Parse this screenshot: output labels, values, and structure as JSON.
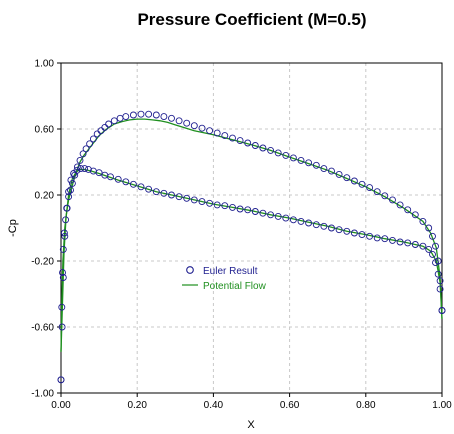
{
  "chart_data": {
    "type": "line",
    "title": "Pressure Coefficient (M=0.5)",
    "xlabel": "X",
    "ylabel": "-Cp",
    "xlim": [
      0,
      1
    ],
    "ylim": [
      -1,
      1
    ],
    "x_ticks": [
      0,
      0.2,
      0.4,
      0.6,
      0.8,
      1.0
    ],
    "x_tick_labels": [
      "0.00",
      "0.20",
      "0.40",
      "0.60",
      "0.80",
      "1.00"
    ],
    "y_ticks": [
      -1,
      -0.6,
      -0.2,
      0.2,
      0.6,
      1.0
    ],
    "y_tick_labels": [
      "-1.00",
      "-0.60",
      "-0.20",
      "0.20",
      "0.60",
      "1.00"
    ],
    "grid": true,
    "legend_position": "center-left",
    "series": [
      {
        "name": "Euler Result",
        "style": "markers",
        "color": "#1f1f8f",
        "upper": [
          [
            0.0,
            -0.92
          ],
          [
            0.002,
            -0.48
          ],
          [
            0.004,
            -0.27
          ],
          [
            0.006,
            -0.13
          ],
          [
            0.009,
            -0.03
          ],
          [
            0.012,
            0.05
          ],
          [
            0.016,
            0.12
          ],
          [
            0.02,
            0.19
          ],
          [
            0.025,
            0.23
          ],
          [
            0.03,
            0.27
          ],
          [
            0.036,
            0.32
          ],
          [
            0.043,
            0.37
          ],
          [
            0.05,
            0.41
          ],
          [
            0.058,
            0.45
          ],
          [
            0.066,
            0.48
          ],
          [
            0.075,
            0.51
          ],
          [
            0.085,
            0.54
          ],
          [
            0.095,
            0.57
          ],
          [
            0.105,
            0.59
          ],
          [
            0.115,
            0.61
          ],
          [
            0.125,
            0.63
          ],
          [
            0.14,
            0.65
          ],
          [
            0.155,
            0.665
          ],
          [
            0.17,
            0.675
          ],
          [
            0.19,
            0.685
          ],
          [
            0.21,
            0.69
          ],
          [
            0.23,
            0.69
          ],
          [
            0.25,
            0.685
          ],
          [
            0.27,
            0.675
          ],
          [
            0.29,
            0.665
          ],
          [
            0.31,
            0.65
          ],
          [
            0.33,
            0.635
          ],
          [
            0.35,
            0.62
          ],
          [
            0.37,
            0.605
          ],
          [
            0.39,
            0.59
          ],
          [
            0.41,
            0.575
          ],
          [
            0.43,
            0.56
          ],
          [
            0.45,
            0.545
          ],
          [
            0.47,
            0.53
          ],
          [
            0.49,
            0.515
          ],
          [
            0.51,
            0.5
          ],
          [
            0.53,
            0.485
          ],
          [
            0.55,
            0.47
          ],
          [
            0.57,
            0.455
          ],
          [
            0.59,
            0.44
          ],
          [
            0.61,
            0.425
          ],
          [
            0.63,
            0.41
          ],
          [
            0.65,
            0.395
          ],
          [
            0.67,
            0.38
          ],
          [
            0.69,
            0.36
          ],
          [
            0.71,
            0.345
          ],
          [
            0.73,
            0.325
          ],
          [
            0.75,
            0.305
          ],
          [
            0.77,
            0.285
          ],
          [
            0.79,
            0.265
          ],
          [
            0.81,
            0.245
          ],
          [
            0.83,
            0.22
          ],
          [
            0.85,
            0.195
          ],
          [
            0.87,
            0.17
          ],
          [
            0.89,
            0.14
          ],
          [
            0.91,
            0.11
          ],
          [
            0.93,
            0.08
          ],
          [
            0.95,
            0.04
          ],
          [
            0.965,
            0.0
          ],
          [
            0.975,
            -0.05
          ],
          [
            0.983,
            -0.11
          ],
          [
            0.99,
            -0.2
          ],
          [
            0.995,
            -0.32
          ],
          [
            1.0,
            -0.5
          ]
        ],
        "lower": [
          [
            0.0,
            -0.92
          ],
          [
            0.003,
            -0.6
          ],
          [
            0.006,
            -0.3
          ],
          [
            0.01,
            -0.05
          ],
          [
            0.015,
            0.12
          ],
          [
            0.02,
            0.22
          ],
          [
            0.026,
            0.29
          ],
          [
            0.033,
            0.33
          ],
          [
            0.042,
            0.35
          ],
          [
            0.052,
            0.36
          ],
          [
            0.062,
            0.36
          ],
          [
            0.072,
            0.355
          ],
          [
            0.085,
            0.345
          ],
          [
            0.1,
            0.335
          ],
          [
            0.115,
            0.32
          ],
          [
            0.13,
            0.31
          ],
          [
            0.15,
            0.295
          ],
          [
            0.17,
            0.28
          ],
          [
            0.19,
            0.265
          ],
          [
            0.21,
            0.25
          ],
          [
            0.23,
            0.235
          ],
          [
            0.25,
            0.22
          ],
          [
            0.27,
            0.21
          ],
          [
            0.29,
            0.2
          ],
          [
            0.31,
            0.19
          ],
          [
            0.33,
            0.18
          ],
          [
            0.35,
            0.17
          ],
          [
            0.37,
            0.16
          ],
          [
            0.39,
            0.15
          ],
          [
            0.41,
            0.14
          ],
          [
            0.43,
            0.135
          ],
          [
            0.45,
            0.125
          ],
          [
            0.47,
            0.115
          ],
          [
            0.49,
            0.11
          ],
          [
            0.51,
            0.1
          ],
          [
            0.53,
            0.09
          ],
          [
            0.55,
            0.08
          ],
          [
            0.57,
            0.07
          ],
          [
            0.59,
            0.06
          ],
          [
            0.61,
            0.05
          ],
          [
            0.63,
            0.04
          ],
          [
            0.65,
            0.03
          ],
          [
            0.67,
            0.02
          ],
          [
            0.69,
            0.01
          ],
          [
            0.71,
            0.0
          ],
          [
            0.73,
            -0.01
          ],
          [
            0.75,
            -0.02
          ],
          [
            0.77,
            -0.03
          ],
          [
            0.79,
            -0.04
          ],
          [
            0.81,
            -0.05
          ],
          [
            0.83,
            -0.06
          ],
          [
            0.85,
            -0.065
          ],
          [
            0.87,
            -0.075
          ],
          [
            0.89,
            -0.085
          ],
          [
            0.91,
            -0.09
          ],
          [
            0.93,
            -0.1
          ],
          [
            0.95,
            -0.11
          ],
          [
            0.965,
            -0.13
          ],
          [
            0.975,
            -0.16
          ],
          [
            0.983,
            -0.21
          ],
          [
            0.99,
            -0.28
          ],
          [
            0.995,
            -0.37
          ],
          [
            1.0,
            -0.5
          ]
        ]
      },
      {
        "name": "Potential Flow",
        "style": "line",
        "color": "#1f8f1f",
        "upper": [
          [
            0.0,
            -0.75
          ],
          [
            0.002,
            -0.45
          ],
          [
            0.005,
            -0.2
          ],
          [
            0.01,
            0.0
          ],
          [
            0.015,
            0.1
          ],
          [
            0.02,
            0.17
          ],
          [
            0.03,
            0.26
          ],
          [
            0.04,
            0.34
          ],
          [
            0.05,
            0.4
          ],
          [
            0.06,
            0.44
          ],
          [
            0.08,
            0.5
          ],
          [
            0.1,
            0.56
          ],
          [
            0.12,
            0.6
          ],
          [
            0.14,
            0.63
          ],
          [
            0.16,
            0.645
          ],
          [
            0.18,
            0.655
          ],
          [
            0.2,
            0.66
          ],
          [
            0.22,
            0.66
          ],
          [
            0.24,
            0.655
          ],
          [
            0.26,
            0.65
          ],
          [
            0.28,
            0.64
          ],
          [
            0.3,
            0.625
          ],
          [
            0.35,
            0.59
          ],
          [
            0.4,
            0.565
          ],
          [
            0.45,
            0.535
          ],
          [
            0.5,
            0.505
          ],
          [
            0.55,
            0.47
          ],
          [
            0.6,
            0.43
          ],
          [
            0.65,
            0.39
          ],
          [
            0.7,
            0.35
          ],
          [
            0.75,
            0.3
          ],
          [
            0.8,
            0.25
          ],
          [
            0.85,
            0.19
          ],
          [
            0.9,
            0.12
          ],
          [
            0.95,
            0.04
          ],
          [
            0.97,
            -0.03
          ],
          [
            0.985,
            -0.12
          ],
          [
            0.995,
            -0.3
          ],
          [
            1.0,
            -0.55
          ]
        ],
        "lower": [
          [
            0.0,
            -0.75
          ],
          [
            0.004,
            -0.45
          ],
          [
            0.008,
            -0.15
          ],
          [
            0.013,
            0.06
          ],
          [
            0.02,
            0.2
          ],
          [
            0.03,
            0.3
          ],
          [
            0.04,
            0.34
          ],
          [
            0.05,
            0.355
          ],
          [
            0.06,
            0.355
          ],
          [
            0.08,
            0.345
          ],
          [
            0.1,
            0.33
          ],
          [
            0.15,
            0.29
          ],
          [
            0.2,
            0.255
          ],
          [
            0.25,
            0.22
          ],
          [
            0.3,
            0.195
          ],
          [
            0.35,
            0.17
          ],
          [
            0.4,
            0.145
          ],
          [
            0.45,
            0.125
          ],
          [
            0.5,
            0.105
          ],
          [
            0.55,
            0.08
          ],
          [
            0.6,
            0.06
          ],
          [
            0.65,
            0.035
          ],
          [
            0.7,
            0.01
          ],
          [
            0.75,
            -0.02
          ],
          [
            0.8,
            -0.04
          ],
          [
            0.85,
            -0.065
          ],
          [
            0.9,
            -0.085
          ],
          [
            0.95,
            -0.11
          ],
          [
            0.97,
            -0.14
          ],
          [
            0.985,
            -0.2
          ],
          [
            0.995,
            -0.33
          ],
          [
            1.0,
            -0.55
          ]
        ]
      }
    ]
  }
}
